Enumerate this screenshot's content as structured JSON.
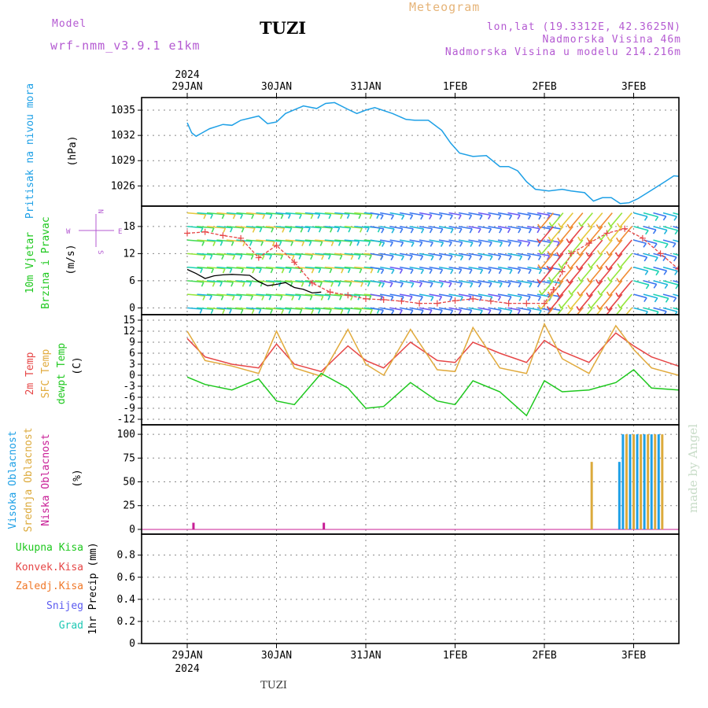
{
  "header": {
    "model_label": "Model",
    "model_name": "wrf-nmm_v3.9.1  e1km",
    "location": "TUZI",
    "chart_title": "Meteogram",
    "coords": "lon,lat (19.3312E, 42.3625N)",
    "elevation": "Nadmorska Visina 46m",
    "model_elevation": "Nadmorska Visina u modelu 214.216m",
    "year": "2024",
    "footer_location": "TUZI",
    "watermark": "made by Angel"
  },
  "colors": {
    "pressure": "#1ea0e6",
    "temp2m": "#e64646",
    "sfc_temp": "#e1aa3c",
    "dewpt": "#1ec81e",
    "high_cloud": "#1ea0e6",
    "mid_cloud": "#dcaa3c",
    "low_cloud": "#c81e96",
    "wind_label": "#1ec81e",
    "compass": "#b45ad2",
    "header": "#b45ad2",
    "title_orange": "#e6b478",
    "wind_speed_line": "#000000",
    "wind_gust_line": "#e64646"
  },
  "chart_data": [
    {
      "type": "line",
      "panel": "pressure",
      "ylabel_lines": [
        "Pritisak na nivou mora"
      ],
      "unit": "(hPa)",
      "x_ticks": [
        "29JAN",
        "30JAN",
        "31JAN",
        "1FEB",
        "2FEB",
        "3FEB"
      ],
      "y_ticks": [
        1026,
        1029,
        1032,
        1035
      ],
      "ylim": [
        1023.6,
        1036.5
      ],
      "grid": true,
      "series": [
        {
          "color": "#1ea0e6",
          "x": [
            0,
            0.05,
            0.1,
            0.25,
            0.4,
            0.5,
            0.6,
            0.8,
            0.9,
            1.0,
            1.1,
            1.3,
            1.45,
            1.55,
            1.65,
            1.8,
            1.9,
            2.0,
            2.1,
            2.3,
            2.45,
            2.55,
            2.7,
            2.85,
            2.95,
            3.05,
            3.2,
            3.35,
            3.5,
            3.6,
            3.7,
            3.8,
            3.9,
            4.05,
            4.2,
            4.3,
            4.45,
            4.55,
            4.65,
            4.75,
            4.85,
            4.95,
            5.05,
            5.2,
            5.35,
            5.45,
            5.55,
            5.65,
            5.75,
            5.85,
            5.95,
            6.05
          ],
          "values": [
            1033.5,
            1032.3,
            1031.9,
            1032.8,
            1033.3,
            1033.2,
            1033.8,
            1034.3,
            1033.4,
            1033.6,
            1034.6,
            1035.5,
            1035.2,
            1035.8,
            1035.9,
            1035.1,
            1034.6,
            1035.0,
            1035.3,
            1034.6,
            1033.9,
            1033.8,
            1033.8,
            1032.6,
            1031.1,
            1029.9,
            1029.5,
            1029.6,
            1028.3,
            1028.3,
            1027.8,
            1026.5,
            1025.6,
            1025.4,
            1025.6,
            1025.4,
            1025.2,
            1024.2,
            1024.6,
            1024.6,
            1023.9,
            1024.0,
            1024.5,
            1025.5,
            1026.5,
            1027.2,
            1027.1,
            1027.8,
            1028.3,
            1028.6,
            1028.1,
            1026.6
          ]
        }
      ]
    },
    {
      "type": "line",
      "panel": "wind",
      "ylabel_lines": [
        "10m Vjetar",
        "Brzina i Pravac"
      ],
      "unit": "(m/s)",
      "compass": {
        "north": "N",
        "south": "S",
        "west": "W",
        "east": "E"
      },
      "y_ticks": [
        0,
        6,
        12,
        18
      ],
      "ylim": [
        -1.5,
        22.5
      ],
      "grid": true,
      "series": [
        {
          "name": "speed",
          "color": "#000000",
          "x": [
            0.0,
            0.1,
            0.2,
            0.3,
            0.4,
            0.5,
            0.6,
            0.7,
            0.8,
            0.9,
            1.0,
            1.1,
            1.2,
            1.3,
            1.4,
            1.5
          ],
          "values": [
            8.5,
            7.6,
            6.5,
            7.1,
            7.3,
            7.4,
            7.3,
            7.2,
            5.8,
            4.9,
            5.2,
            5.6,
            4.5,
            4.1,
            3.3,
            3.5
          ]
        },
        {
          "name": "gust",
          "color": "#e64646",
          "x": [
            0.0,
            0.2,
            0.4,
            0.6,
            0.8,
            1.0,
            1.2,
            1.4,
            1.6,
            1.8,
            2.0,
            2.2,
            2.4,
            2.6,
            2.8,
            3.0,
            3.2,
            3.4,
            3.6,
            3.8,
            4.0,
            4.1,
            4.2,
            4.3,
            4.5,
            4.7,
            4.9,
            5.1,
            5.3,
            5.5,
            5.7,
            5.9,
            6.1
          ],
          "values": [
            16.5,
            16.8,
            16.0,
            15.4,
            11.1,
            13.8,
            10.1,
            5.5,
            3.5,
            2.8,
            2.0,
            1.8,
            1.5,
            1.0,
            1.0,
            1.6,
            2.0,
            1.5,
            1.0,
            1.0,
            1.0,
            4.0,
            8.0,
            12.0,
            14.3,
            16.5,
            17.5,
            15.4,
            12.0,
            8.6,
            5.6,
            2.6,
            1.5
          ]
        }
      ],
      "barbs": {
        "rows": [
          0,
          3,
          6,
          9,
          12,
          15,
          18,
          21
        ],
        "regimes": [
          {
            "x": [
              0.0,
              2.05
            ],
            "dir_deg": 95,
            "speed_range": [
              8,
              16
            ]
          },
          {
            "x": [
              2.05,
              4.1
            ],
            "dir_deg": 100,
            "speed_range": [
              3,
              7
            ]
          },
          {
            "x": [
              4.1,
              5.0
            ],
            "dir_deg": 220,
            "speed_range": [
              14,
              22
            ]
          },
          {
            "x": [
              5.0,
              6.1
            ],
            "dir_deg": 105,
            "speed_range": [
              4,
              10
            ]
          }
        ]
      }
    },
    {
      "type": "line",
      "panel": "temperature",
      "ylabel_lines": [
        "2m Temp",
        "SFC Temp",
        "dewpt Temp"
      ],
      "unit": "(C)",
      "y_ticks": [
        -12,
        -9,
        -6,
        -3,
        0,
        3,
        6,
        9,
        12,
        15
      ],
      "ylim": [
        -13.5,
        16.5
      ],
      "grid": true,
      "series": [
        {
          "name": "2m Temp",
          "color": "#e64646",
          "x": [
            0.0,
            0.2,
            0.5,
            0.8,
            1.0,
            1.2,
            1.5,
            1.8,
            2.0,
            2.2,
            2.5,
            2.8,
            3.0,
            3.2,
            3.5,
            3.8,
            4.0,
            4.2,
            4.5,
            4.8,
            5.0,
            5.2,
            5.5,
            5.8,
            6.0,
            6.1
          ],
          "values": [
            10.0,
            5.0,
            3.0,
            2.0,
            8.5,
            3.0,
            1.0,
            8.0,
            4.0,
            2.0,
            9.0,
            4.0,
            3.5,
            9.0,
            6.0,
            3.5,
            9.5,
            6.5,
            3.5,
            11.5,
            8.0,
            5.0,
            2.5,
            2.5,
            8.0,
            10.0
          ]
        },
        {
          "name": "SFC Temp",
          "color": "#e1aa3c",
          "x": [
            0.0,
            0.2,
            0.5,
            0.8,
            1.0,
            1.2,
            1.5,
            1.8,
            2.0,
            2.2,
            2.5,
            2.8,
            3.0,
            3.2,
            3.5,
            3.8,
            4.0,
            4.2,
            4.5,
            4.8,
            5.0,
            5.2,
            5.5,
            5.8,
            6.0,
            6.1
          ],
          "values": [
            12.0,
            4.0,
            2.5,
            0.5,
            12.0,
            2.0,
            -0.3,
            12.5,
            3.0,
            0.0,
            12.5,
            1.5,
            1.0,
            13.0,
            2.0,
            0.5,
            14.0,
            4.5,
            0.5,
            13.5,
            7.0,
            2.0,
            0.0,
            0.0,
            12.5,
            15.0
          ]
        },
        {
          "name": "dewpt Temp",
          "color": "#1ec81e",
          "x": [
            0.0,
            0.2,
            0.5,
            0.8,
            1.0,
            1.2,
            1.5,
            1.8,
            2.0,
            2.2,
            2.5,
            2.8,
            3.0,
            3.2,
            3.5,
            3.8,
            4.0,
            4.2,
            4.5,
            4.8,
            5.0,
            5.2,
            5.5,
            5.8,
            6.0,
            6.1
          ],
          "values": [
            -0.5,
            -2.5,
            -4.0,
            -1.0,
            -7.0,
            -8.0,
            0.5,
            -3.5,
            -9.0,
            -8.5,
            -2.0,
            -7.0,
            -8.0,
            -1.5,
            -4.5,
            -11.0,
            -1.5,
            -4.5,
            -4.0,
            -2.0,
            1.5,
            -3.5,
            -4.0,
            -5.5,
            -0.5,
            0.0
          ]
        }
      ]
    },
    {
      "type": "bar",
      "panel": "cloud",
      "ylabel_lines": [
        "Visoka Oblacnost",
        "Srednja Oblacnost",
        "Niska Oblacnost"
      ],
      "unit": "(%)",
      "y_ticks": [
        0,
        25,
        50,
        75,
        100
      ],
      "ylim": [
        -5,
        110
      ],
      "grid": true,
      "series": [
        {
          "name": "Visoka Oblacnost",
          "color": "#1ea0e6",
          "x": [
            4.84,
            4.88,
            4.96,
            5.04,
            5.12,
            5.2,
            5.28
          ],
          "values": [
            71,
            100,
            100,
            100,
            100,
            100,
            100
          ]
        },
        {
          "name": "Srednja Oblacnost",
          "color": "#dcaa3c",
          "x": [
            4.53,
            4.92,
            5.0,
            5.08,
            5.16,
            5.24,
            5.32
          ],
          "values": [
            71,
            100,
            100,
            100,
            100,
            100,
            100
          ]
        },
        {
          "name": "Niska Oblacnost",
          "color": "#c81e96",
          "x": [
            0.07,
            1.53
          ],
          "values": [
            7,
            7
          ]
        }
      ]
    },
    {
      "type": "bar",
      "panel": "precip",
      "legend": [
        "Ukupna Kisa",
        "Konvek.Kisa",
        "Zaledj.Kisa",
        "Snijeg",
        "Grad"
      ],
      "legend_colors": [
        "#1ec81e",
        "#e64646",
        "#f07828",
        "#5a5af0",
        "#1ec8b4"
      ],
      "unit": "1hr Precip (mm)",
      "y_ticks": [
        0,
        0.2,
        0.4,
        0.6,
        0.8
      ],
      "y_tick_labels": [
        "0",
        "0.2",
        "0.4",
        "0.6",
        "0.8"
      ],
      "ylim": [
        0,
        0.99
      ],
      "grid": true,
      "bottom_x_ticks": [
        "29JAN",
        "30JAN",
        "31JAN",
        "1FEB",
        "2FEB",
        "3FEB"
      ],
      "series": []
    }
  ]
}
